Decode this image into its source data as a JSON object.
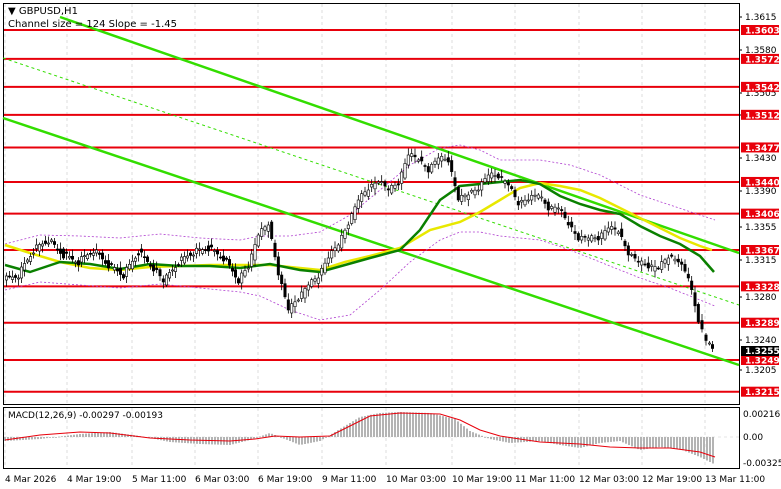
{
  "header": {
    "symbol_line": "GBPUSD,H1",
    "channel_line": "Channel size = 124  Slope = -1.45"
  },
  "chart_data": {
    "type": "candlestick",
    "symbol": "GBPUSD",
    "timeframe": "H1",
    "y_ticks": [
      "1.3615",
      "1.3580",
      "1.3505",
      "1.3465",
      "1.3430",
      "1.3390",
      "1.3355",
      "1.3315",
      "1.3280",
      "1.3240",
      "1.3205"
    ],
    "x_ticks": [
      "4 Mar 2026",
      "4 Mar 19:00",
      "5 Mar 11:00",
      "6 Mar 03:00",
      "6 Mar 19:00",
      "9 Mar 11:00",
      "10 Mar 03:00",
      "10 Mar 19:00",
      "11 Mar 11:00",
      "12 Mar 03:00",
      "12 Mar 19:00",
      "13 Mar 11:00"
    ],
    "levels": [
      {
        "value": 1.3603,
        "label": "1.3603"
      },
      {
        "value": 1.3572,
        "label": "1.3572"
      },
      {
        "value": 1.3542,
        "label": "1.3542"
      },
      {
        "value": 1.3512,
        "label": "1.3512"
      },
      {
        "value": 1.3477,
        "label": "1.3477"
      },
      {
        "value": 1.344,
        "label": "1.3440"
      },
      {
        "value": 1.3406,
        "label": "1.3406"
      },
      {
        "value": 1.3367,
        "label": "1.3367"
      },
      {
        "value": 1.3328,
        "label": "1.3328"
      },
      {
        "value": 1.3289,
        "label": "1.3289"
      },
      {
        "value": 1.3249,
        "label": "1.3249"
      },
      {
        "value": 1.3215,
        "label": "1.3215"
      }
    ],
    "current_price": "1.3255",
    "colors": {
      "levels": "#e8000b",
      "channel": "#33dd00",
      "ma_fast": "#e8e800",
      "ma_slow": "#0a8000",
      "envelope": "#b040d0",
      "macd_hist": "#b4b4b4",
      "macd_signal": "#e8000b"
    }
  },
  "macd": {
    "label": "MACD(12,26,9) -0.00297 -0.00193",
    "y_ticks": [
      "0.00216",
      "0.00",
      "-0.00325"
    ]
  }
}
